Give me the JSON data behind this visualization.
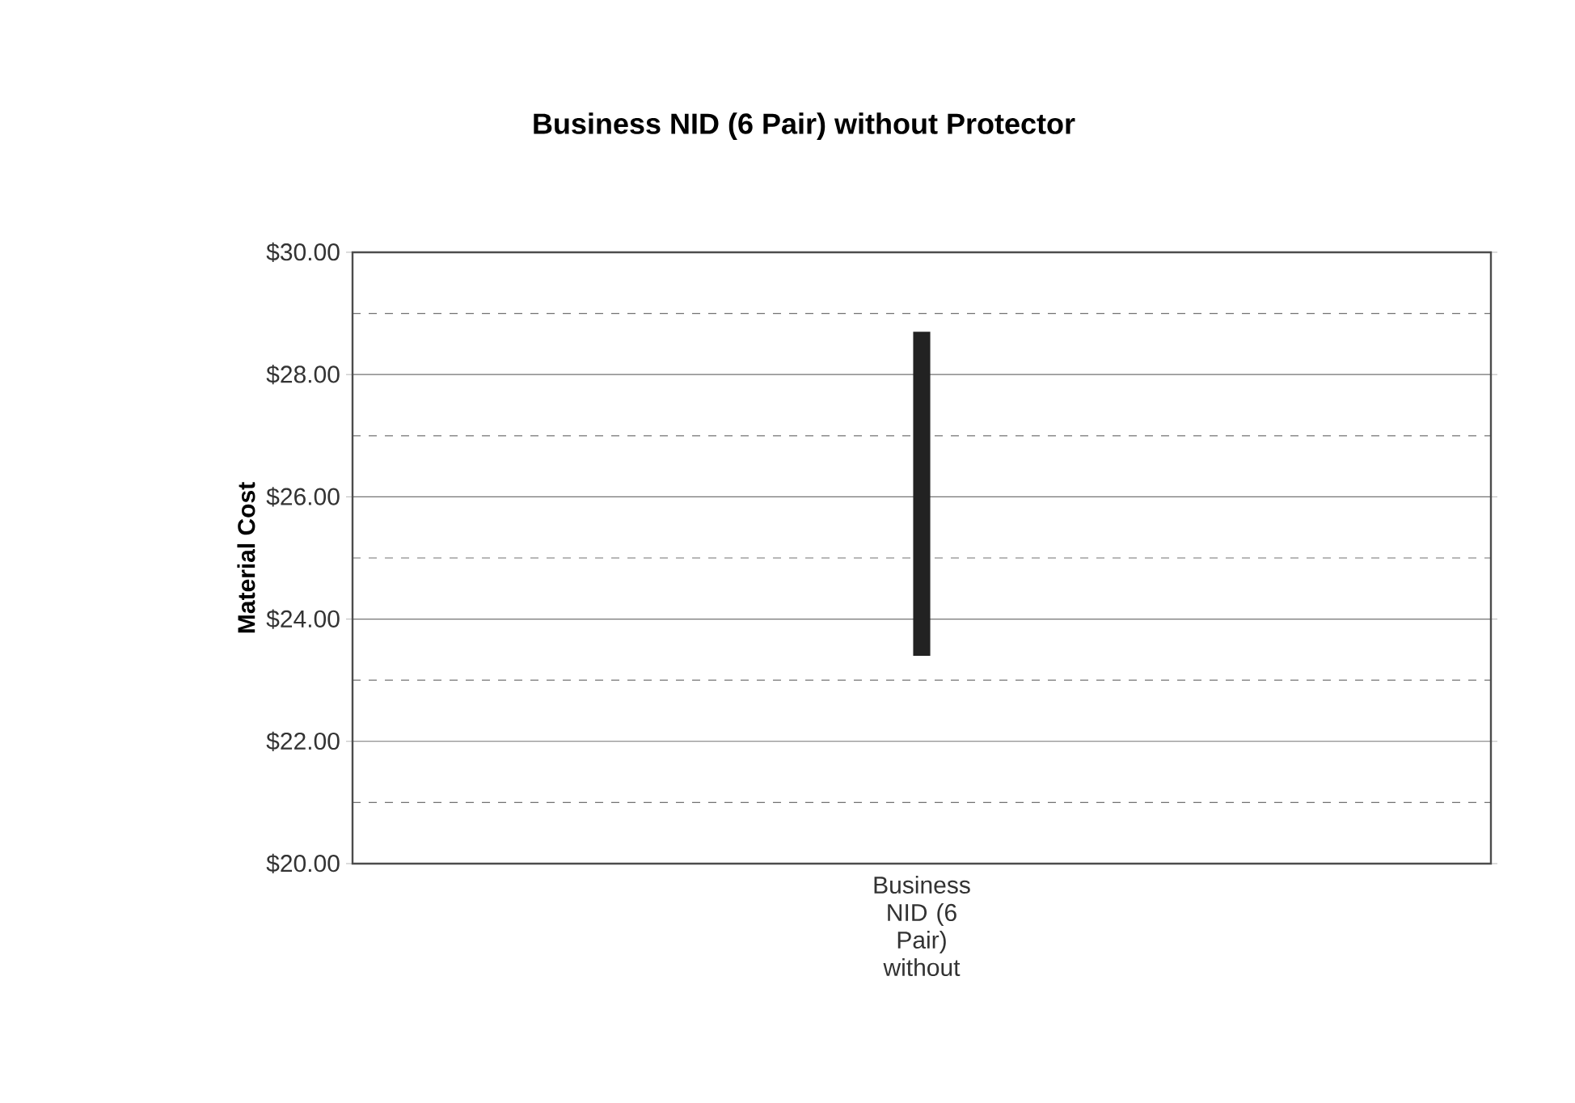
{
  "chart_data": {
    "type": "bar",
    "title": "Business NID (6 Pair) without Protector",
    "ylabel": "Material Cost",
    "categories": [
      "Business NID (6 Pair) without"
    ],
    "base": [
      23.4
    ],
    "values": [
      5.3
    ],
    "color": "#222222",
    "ylim": [
      20,
      30
    ],
    "yticks": [
      {
        "value": 20,
        "label": "$20.00"
      },
      {
        "value": 21,
        "label": null
      },
      {
        "value": 22,
        "label": "$22.00"
      },
      {
        "value": 23,
        "label": null
      },
      {
        "value": 24,
        "label": "$24.00"
      },
      {
        "value": 25,
        "label": null
      },
      {
        "value": 26,
        "label": "$26.00"
      },
      {
        "value": 27,
        "label": null
      },
      {
        "value": 28,
        "label": "$28.00"
      },
      {
        "value": 29,
        "label": null
      },
      {
        "value": 30,
        "label": "$30.00"
      }
    ],
    "grid": true
  }
}
